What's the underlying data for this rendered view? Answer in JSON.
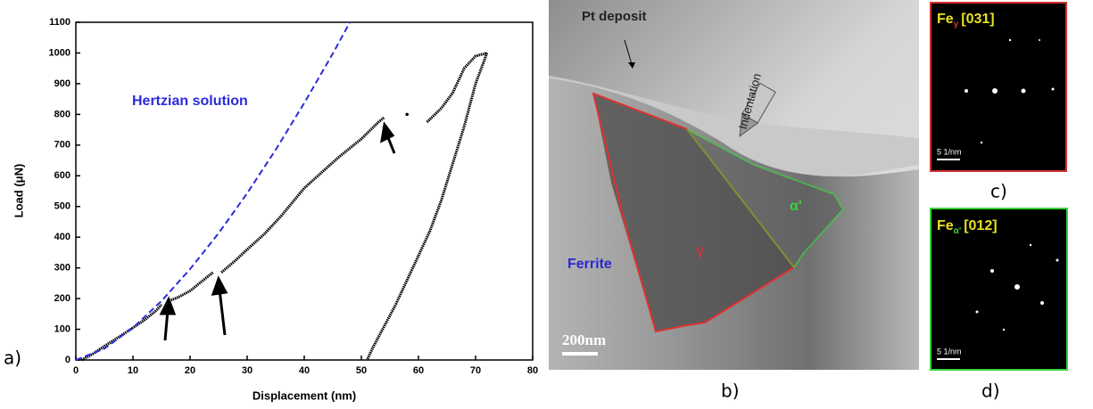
{
  "chart_data": {
    "type": "line",
    "xlabel": "Displacement (nm)",
    "ylabel": "Load (μN)",
    "xlim": [
      0,
      80
    ],
    "xticks": [
      0,
      10,
      20,
      30,
      40,
      50,
      60,
      70,
      80
    ],
    "ylim": [
      0,
      1100
    ],
    "yticks": [
      0,
      100,
      200,
      300,
      400,
      500,
      600,
      700,
      800,
      900,
      1000,
      1100
    ],
    "series": [
      {
        "color": "#000000",
        "style": "dotted",
        "x": [
          1,
          3,
          5,
          8,
          10,
          12,
          14,
          15,
          15.5,
          16,
          18,
          20,
          22,
          24,
          24.5,
          25.5,
          28,
          30,
          33,
          36,
          40,
          43,
          46,
          50,
          53,
          54,
          56,
          58,
          60,
          61.5,
          64,
          66,
          68,
          70,
          72
        ],
        "values": [
          0,
          20,
          45,
          80,
          105,
          130,
          160,
          180,
          null,
          190,
          205,
          225,
          255,
          285,
          null,
          285,
          325,
          360,
          410,
          470,
          560,
          610,
          660,
          720,
          775,
          790,
          null,
          800,
          null,
          775,
          820,
          870,
          950,
          990,
          1000
        ]
      },
      {
        "color": "#000000",
        "style": "dotted",
        "x": [
          72,
          71,
          70,
          69,
          68,
          67,
          66,
          65,
          64,
          62,
          60,
          58,
          56,
          54,
          52,
          51
        ],
        "values": [
          1000,
          950,
          900,
          830,
          760,
          700,
          640,
          580,
          520,
          420,
          340,
          260,
          180,
          110,
          40,
          0
        ]
      },
      {
        "name": "Hertzian solution",
        "color": "#2b2bdc",
        "style": "dashed",
        "x": [
          0,
          5,
          10,
          15,
          20,
          25,
          30,
          35,
          40,
          45,
          48
        ],
        "values": [
          0,
          37,
          105,
          192,
          296,
          413,
          543,
          685,
          837,
          998,
          1100
        ]
      }
    ]
  },
  "panels": {
    "a": "a)",
    "b": "b)",
    "c": "c)",
    "d": "d)",
    "tem": {
      "pt": "Pt deposit",
      "indentation": "Indentation",
      "ferrite": "Ferrite",
      "gamma": "γ",
      "alpha": "α'",
      "scale": "200nm"
    },
    "c_pattern": {
      "element": "Fe",
      "phase": "γ",
      "zone": "[031]",
      "scale": "5 1/nm"
    },
    "d_pattern": {
      "element": "Fe",
      "phase": "α'",
      "zone": "[012]",
      "scale": "5 1/nm"
    }
  }
}
